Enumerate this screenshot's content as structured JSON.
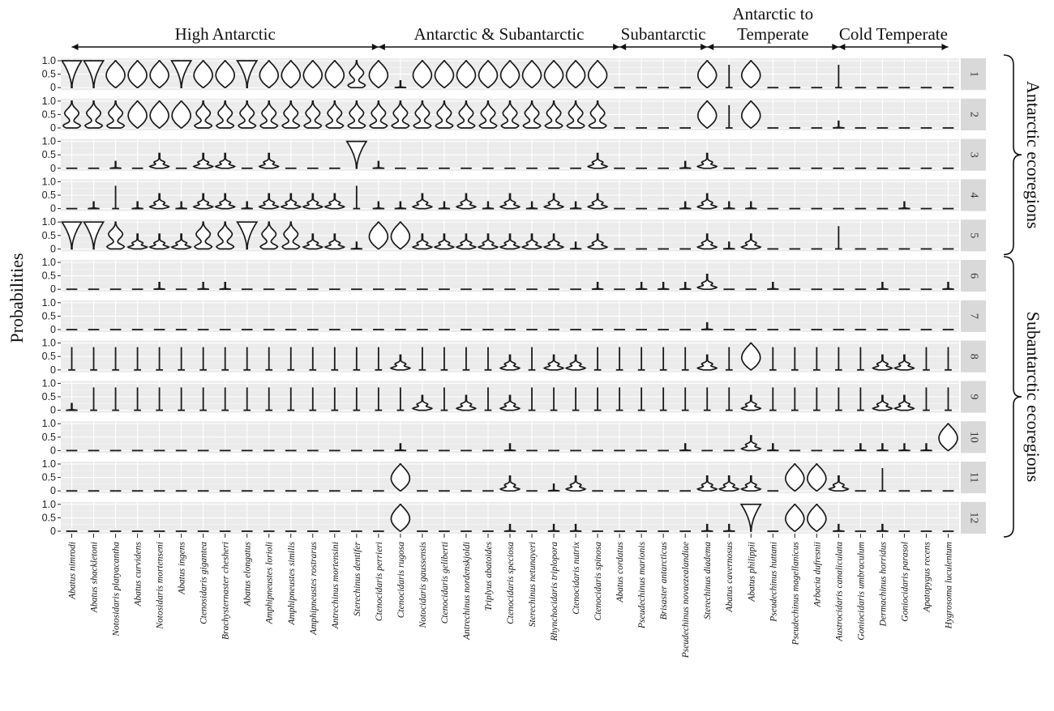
{
  "chart_data": {
    "type": "violin",
    "ylabel": "Probabilities",
    "y_ticks": [
      "0",
      "0.5",
      "1.0"
    ],
    "ylim": [
      0,
      1
    ],
    "species": [
      "Abatus nimrodi",
      "Abatus shackletoni",
      "Notosidaris platyacantha",
      "Abatus curvidens",
      "Notosidaris mortenseni",
      "Abatus ingens",
      "Ctenosidaris gigantea",
      "Brachysternaster chesheri",
      "Abatus elongatus",
      "Amphipneustes lorioli",
      "Amphipneustes similis",
      "Amphipneustes rostrarus",
      "Antrechinus mortensini",
      "Sterechinus dentifer",
      "Ctenocidaris perrieri",
      "Ctenocidaris rugosa",
      "Notocidaris gaussensis",
      "Ctenocidaris geliberti",
      "Antrechinus nordenskjoldi",
      "Triplyus abatoides",
      "Ctenocidaris speciosa",
      "Sterechinus netunayeri",
      "Rhynchocidaris triplopora",
      "Ctenocidaris nutrix",
      "Ctenocidaris spinosa",
      "Abatus cordatus",
      "Pseudechinus marionis",
      "Brisaster antarcticus",
      "Pseudechinus novaezealandiae",
      "Sterechinus diadema",
      "Abatus cavernosus",
      "Abatus philippii",
      "Pseudechinus huttani",
      "Pseudechinus  magellanicus",
      "Arbacia dufresnii",
      "Austrocidaris canaliculata",
      "Goniocidaris umbraculum",
      "Dermachinus horridus",
      "Goniocidaris parasol",
      "Apatopygus recens",
      "Hygrosoma luculentum"
    ],
    "groups": [
      {
        "label": "High Antarctic",
        "from": 0,
        "to": 14
      },
      {
        "label": "Antarctic & Subantarctic",
        "from": 14,
        "to": 25
      },
      {
        "label": "Subantarctic",
        "from": 25,
        "to": 29
      },
      {
        "label": "Antarctic to",
        "label2": "Temperate",
        "from": 29,
        "to": 35
      },
      {
        "label": "Cold Temperate",
        "from": 35,
        "to": 40
      }
    ],
    "ecoregions": [
      "1",
      "2",
      "3",
      "4",
      "5",
      "6",
      "7",
      "8",
      "9",
      "10",
      "11",
      "12"
    ],
    "ecoregion_groups": [
      {
        "label": "Antarctic ecoregions",
        "from": 1,
        "to": 5
      },
      {
        "label": "Subantarctic ecoregions",
        "from": 6,
        "to": 12
      }
    ],
    "violin_shapes": [
      [
        "T",
        "T",
        "D",
        "D",
        "D",
        "T",
        "D",
        "D",
        "T",
        "D",
        "D",
        "D",
        "D",
        "B",
        "D",
        "S",
        "D",
        "D",
        "D",
        "D",
        "D",
        "D",
        "D",
        "D",
        "D",
        "F",
        "F",
        "F",
        "F",
        "D",
        "L",
        "D",
        "F",
        "F",
        "F",
        "L",
        "F",
        "F",
        "F",
        "F",
        "F"
      ],
      [
        "B",
        "B",
        "B",
        "D",
        "D",
        "D",
        "B",
        "B",
        "B",
        "B",
        "B",
        "B",
        "B",
        "B",
        "B",
        "B",
        "B",
        "B",
        "B",
        "B",
        "B",
        "B",
        "B",
        "B",
        "B",
        "F",
        "F",
        "F",
        "F",
        "D",
        "L",
        "D",
        "F",
        "F",
        "F",
        "S",
        "F",
        "F",
        "F",
        "F",
        "F"
      ],
      [
        "F",
        "F",
        "S",
        "F",
        "M",
        "F",
        "M",
        "M",
        "F",
        "M",
        "F",
        "F",
        "F",
        "T",
        "S",
        "F",
        "F",
        "F",
        "F",
        "F",
        "F",
        "F",
        "F",
        "F",
        "M",
        "F",
        "F",
        "F",
        "S",
        "M",
        "F",
        "F",
        "F",
        "F",
        "F",
        "F",
        "F",
        "F",
        "F",
        "F",
        "F"
      ],
      [
        "F",
        "S",
        "L",
        "S",
        "M",
        "S",
        "M",
        "M",
        "S",
        "M",
        "M",
        "M",
        "M",
        "L",
        "S",
        "S",
        "M",
        "S",
        "M",
        "S",
        "M",
        "S",
        "M",
        "S",
        "M",
        "F",
        "F",
        "F",
        "S",
        "M",
        "S",
        "S",
        "F",
        "F",
        "F",
        "F",
        "F",
        "F",
        "S",
        "F",
        "F"
      ],
      [
        "T",
        "T",
        "B",
        "M",
        "M",
        "M",
        "B",
        "B",
        "T",
        "B",
        "B",
        "M",
        "M",
        "S",
        "D",
        "D",
        "M",
        "M",
        "M",
        "M",
        "M",
        "M",
        "M",
        "S",
        "M",
        "F",
        "F",
        "F",
        "F",
        "M",
        "S",
        "M",
        "F",
        "F",
        "F",
        "L",
        "F",
        "F",
        "F",
        "F",
        "F"
      ],
      [
        "F",
        "F",
        "F",
        "F",
        "S",
        "F",
        "S",
        "S",
        "F",
        "F",
        "F",
        "F",
        "F",
        "F",
        "F",
        "F",
        "F",
        "F",
        "F",
        "F",
        "F",
        "F",
        "F",
        "F",
        "S",
        "F",
        "S",
        "S",
        "S",
        "M",
        "F",
        "F",
        "S",
        "F",
        "F",
        "F",
        "F",
        "S",
        "F",
        "F",
        "S"
      ],
      [
        "F",
        "F",
        "F",
        "F",
        "F",
        "F",
        "F",
        "F",
        "F",
        "F",
        "F",
        "F",
        "F",
        "F",
        "F",
        "F",
        "F",
        "F",
        "F",
        "F",
        "F",
        "F",
        "F",
        "F",
        "F",
        "F",
        "F",
        "F",
        "F",
        "S",
        "F",
        "F",
        "F",
        "F",
        "F",
        "F",
        "F",
        "F",
        "F",
        "F",
        "F"
      ],
      [
        "L",
        "L",
        "L",
        "L",
        "L",
        "L",
        "L",
        "L",
        "L",
        "L",
        "L",
        "L",
        "L",
        "L",
        "L",
        "M",
        "L",
        "L",
        "L",
        "L",
        "M",
        "L",
        "M",
        "M",
        "L",
        "L",
        "L",
        "L",
        "L",
        "M",
        "L",
        "D",
        "L",
        "L",
        "L",
        "L",
        "L",
        "M",
        "M",
        "L",
        "L"
      ],
      [
        "S",
        "L",
        "L",
        "L",
        "L",
        "L",
        "L",
        "L",
        "L",
        "L",
        "L",
        "L",
        "L",
        "L",
        "L",
        "L",
        "M",
        "L",
        "M",
        "L",
        "M",
        "L",
        "L",
        "L",
        "L",
        "L",
        "L",
        "L",
        "L",
        "L",
        "L",
        "M",
        "L",
        "L",
        "L",
        "L",
        "L",
        "M",
        "M",
        "L",
        "L"
      ],
      [
        "F",
        "F",
        "F",
        "F",
        "F",
        "F",
        "F",
        "F",
        "F",
        "F",
        "F",
        "F",
        "F",
        "F",
        "F",
        "S",
        "F",
        "F",
        "F",
        "F",
        "S",
        "F",
        "F",
        "F",
        "F",
        "F",
        "F",
        "F",
        "S",
        "F",
        "F",
        "M",
        "S",
        "F",
        "F",
        "F",
        "S",
        "S",
        "S",
        "S",
        "D"
      ],
      [
        "F",
        "F",
        "F",
        "F",
        "F",
        "F",
        "F",
        "F",
        "F",
        "F",
        "F",
        "F",
        "F",
        "F",
        "F",
        "D",
        "F",
        "F",
        "F",
        "F",
        "M",
        "F",
        "S",
        "M",
        "F",
        "F",
        "F",
        "F",
        "F",
        "M",
        "M",
        "M",
        "F",
        "D",
        "D",
        "M",
        "F",
        "L",
        "F",
        "F",
        "F"
      ],
      [
        "F",
        "F",
        "F",
        "F",
        "F",
        "F",
        "F",
        "F",
        "F",
        "F",
        "F",
        "F",
        "F",
        "F",
        "F",
        "D",
        "F",
        "F",
        "F",
        "F",
        "S",
        "F",
        "S",
        "S",
        "F",
        "F",
        "F",
        "F",
        "F",
        "S",
        "S",
        "T",
        "F",
        "D",
        "D",
        "S",
        "F",
        "S",
        "F",
        "F",
        "F"
      ]
    ]
  }
}
